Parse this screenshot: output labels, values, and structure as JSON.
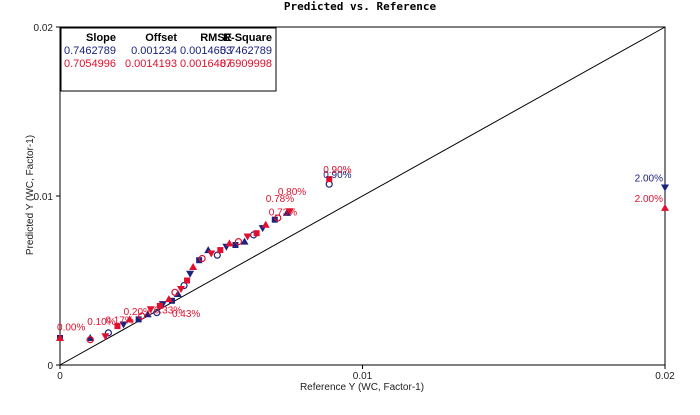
{
  "chart_data": {
    "type": "scatter",
    "title": "Predicted vs. Reference",
    "xlabel": "Reference Y (WC, Factor-1)",
    "ylabel": "Predicted Y (WC, Factor-1)",
    "xlim": [
      0,
      0.02
    ],
    "ylim": [
      0,
      0.02
    ],
    "x_ticks": [
      "0",
      "0.01",
      "0.02"
    ],
    "y_ticks": [
      "0",
      "0.01",
      "0.02"
    ],
    "colors": {
      "series1": "#1a237e",
      "series2": "#e0102e",
      "axis": "#000000"
    },
    "stats_table": {
      "headers": [
        "Slope",
        "Offset",
        "RMSE",
        "R-Square"
      ],
      "rows": [
        {
          "color": "#1a237e",
          "values": [
            "0.7462789",
            "0.001234",
            "0.0014653",
            "0.7462789"
          ]
        },
        {
          "color": "#e0102e",
          "values": [
            "0.7054996",
            "0.0014193",
            "0.0016487",
            "0.6909998"
          ]
        }
      ]
    },
    "diagonal": {
      "from": [
        0,
        0
      ],
      "to": [
        0.02,
        0.02
      ]
    },
    "series": [
      {
        "color": "#1a237e",
        "points": [
          [
            0.0,
            0.0016
          ],
          [
            0.001,
            0.0016
          ],
          [
            0.0016,
            0.0019
          ],
          [
            0.0021,
            0.0024
          ],
          [
            0.0026,
            0.0027
          ],
          [
            0.0029,
            0.003
          ],
          [
            0.0032,
            0.0031
          ],
          [
            0.0034,
            0.0036
          ],
          [
            0.0037,
            0.0038
          ],
          [
            0.0039,
            0.0042
          ],
          [
            0.0041,
            0.0047
          ],
          [
            0.0043,
            0.0054
          ],
          [
            0.0046,
            0.0062
          ],
          [
            0.0049,
            0.0068
          ],
          [
            0.0052,
            0.0065
          ],
          [
            0.0055,
            0.007
          ],
          [
            0.0058,
            0.0071
          ],
          [
            0.0061,
            0.0073
          ],
          [
            0.0064,
            0.0077
          ],
          [
            0.0067,
            0.0081
          ],
          [
            0.0071,
            0.0086
          ],
          [
            0.0075,
            0.009
          ],
          [
            0.0089,
            0.0107
          ],
          [
            0.02,
            0.0105
          ]
        ],
        "labels": [
          {
            "x": 0.0089,
            "y": 0.0107,
            "text": "0.90%"
          },
          {
            "x": 0.02,
            "y": 0.0105,
            "text": "2.00%"
          }
        ]
      },
      {
        "color": "#e0102e",
        "points": [
          [
            0.0,
            0.0016
          ],
          [
            0.001,
            0.0015
          ],
          [
            0.0015,
            0.0017
          ],
          [
            0.0019,
            0.0023
          ],
          [
            0.0023,
            0.0027
          ],
          [
            0.0027,
            0.0029
          ],
          [
            0.003,
            0.0033
          ],
          [
            0.0033,
            0.0035
          ],
          [
            0.0036,
            0.0039
          ],
          [
            0.0038,
            0.0043
          ],
          [
            0.004,
            0.0045
          ],
          [
            0.0042,
            0.005
          ],
          [
            0.0044,
            0.0058
          ],
          [
            0.0047,
            0.0063
          ],
          [
            0.005,
            0.0066
          ],
          [
            0.0053,
            0.0068
          ],
          [
            0.0056,
            0.0072
          ],
          [
            0.0059,
            0.0073
          ],
          [
            0.0062,
            0.0076
          ],
          [
            0.0065,
            0.0078
          ],
          [
            0.0068,
            0.0083
          ],
          [
            0.0072,
            0.0087
          ],
          [
            0.0076,
            0.0091
          ],
          [
            0.0089,
            0.011
          ],
          [
            0.02,
            0.0093
          ]
        ],
        "labels": [
          {
            "x": 0.0089,
            "y": 0.011,
            "text": "0.90%"
          },
          {
            "x": 0.0074,
            "y": 0.0097,
            "text": "0.80%"
          },
          {
            "x": 0.007,
            "y": 0.0093,
            "text": "0.78%"
          },
          {
            "x": 0.0071,
            "y": 0.0085,
            "text": "0.73%"
          },
          {
            "x": 0.02,
            "y": 0.0093,
            "text": "2.00%"
          },
          {
            "x": 0.0001,
            "y": 0.0017,
            "text": "0.00%"
          },
          {
            "x": 0.0011,
            "y": 0.002,
            "text": "0.10%"
          },
          {
            "x": 0.0017,
            "y": 0.0021,
            "text": "0.17%"
          },
          {
            "x": 0.0023,
            "y": 0.0026,
            "text": "0.20%"
          },
          {
            "x": 0.0033,
            "y": 0.0027,
            "text": "0.33%"
          },
          {
            "x": 0.0039,
            "y": 0.0025,
            "text": "0.43%"
          }
        ]
      }
    ]
  }
}
